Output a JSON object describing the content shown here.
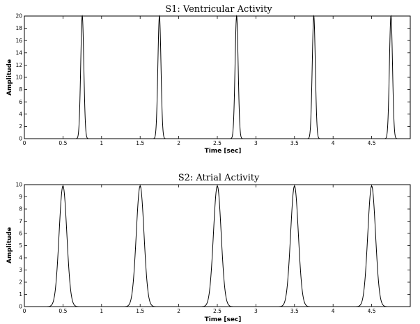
{
  "chart_data": [
    {
      "type": "line",
      "title": "S1: Ventricular Activity",
      "xlabel": "Time [sec]",
      "ylabel": "Amplitude",
      "xlim": [
        0,
        5
      ],
      "ylim": [
        0,
        20
      ],
      "xticks": [
        0,
        0.5,
        1,
        1.5,
        2,
        2.5,
        3,
        3.5,
        4,
        4.5
      ],
      "xtick_labels": [
        "0",
        "0.5",
        "1",
        "1.5",
        "2",
        "2.5",
        "3",
        "3.5",
        "4",
        "4.5"
      ],
      "yticks": [
        0,
        2,
        4,
        6,
        8,
        10,
        12,
        14,
        16,
        18,
        20
      ],
      "ytick_labels": [
        "0",
        "2",
        "4",
        "6",
        "8",
        "10",
        "12",
        "14",
        "16",
        "18",
        "20"
      ],
      "grid": false,
      "series": [
        {
          "pulse_shape": "gaussian",
          "peak_times": [
            0.75,
            1.75,
            2.75,
            3.75,
            4.75
          ],
          "peak_amplitude": 20,
          "pulse_sigma": 0.02,
          "pulse_support": [
            0.6,
            0.9,
            1.6,
            1.9,
            2.6,
            2.9,
            3.6,
            3.9,
            4.6,
            4.9
          ]
        }
      ]
    },
    {
      "type": "line",
      "title": "S2: Atrial Activity",
      "xlabel": "Time [sec]",
      "ylabel": "Amplitude",
      "xlim": [
        0,
        5
      ],
      "ylim": [
        0,
        10
      ],
      "xticks": [
        0,
        0.5,
        1,
        1.5,
        2,
        2.5,
        3,
        3.5,
        4,
        4.5
      ],
      "xtick_labels": [
        "0",
        "0.5",
        "1",
        "1.5",
        "2",
        "2.5",
        "3",
        "3.5",
        "4",
        "4.5"
      ],
      "yticks": [
        0,
        1,
        2,
        3,
        4,
        5,
        6,
        7,
        8,
        9,
        10
      ],
      "ytick_labels": [
        "0",
        "1",
        "2",
        "3",
        "4",
        "5",
        "6",
        "7",
        "8",
        "9",
        "10"
      ],
      "grid": false,
      "series": [
        {
          "pulse_shape": "gaussian",
          "peak_times": [
            0.5,
            1.5,
            2.5,
            3.5,
            4.5
          ],
          "peak_amplitude": 9.9,
          "pulse_sigma": 0.05,
          "pulse_support": [
            0.15,
            0.85,
            1.15,
            1.85,
            2.15,
            2.85,
            3.15,
            3.85,
            4.15,
            4.85
          ]
        }
      ]
    }
  ]
}
